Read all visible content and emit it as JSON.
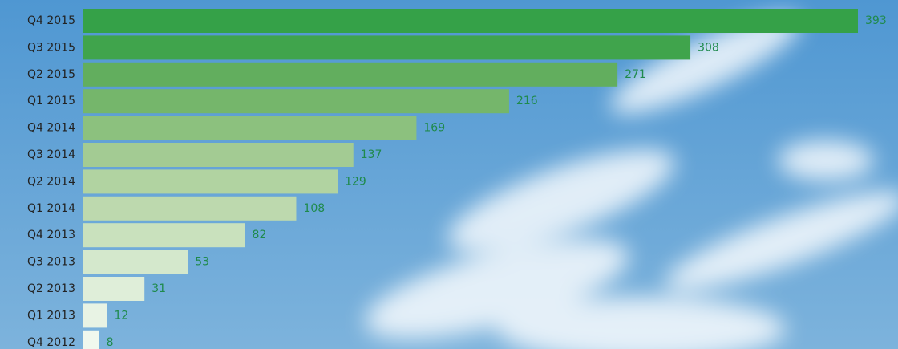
{
  "chart_data": {
    "type": "bar",
    "orientation": "horizontal",
    "categories": [
      "Q4 2015",
      "Q3 2015",
      "Q2 2015",
      "Q1 2015",
      "Q4 2014",
      "Q3 2014",
      "Q2 2014",
      "Q1 2014",
      "Q4 2013",
      "Q3 2013",
      "Q2 2013",
      "Q1 2013",
      "Q4 2012"
    ],
    "values": [
      393,
      308,
      271,
      216,
      169,
      137,
      129,
      108,
      82,
      53,
      31,
      12,
      8
    ],
    "colors": [
      "#35a148",
      "#40a44c",
      "#62ae5e",
      "#75b66b",
      "#8cc17e",
      "#a3cb93",
      "#b1d3a1",
      "#bdd9ae",
      "#c9e1bd",
      "#d4e8cc",
      "#dfeed9",
      "#e8f3e4",
      "#f0f8ee"
    ],
    "label_color": "#1f8a4c"
  }
}
